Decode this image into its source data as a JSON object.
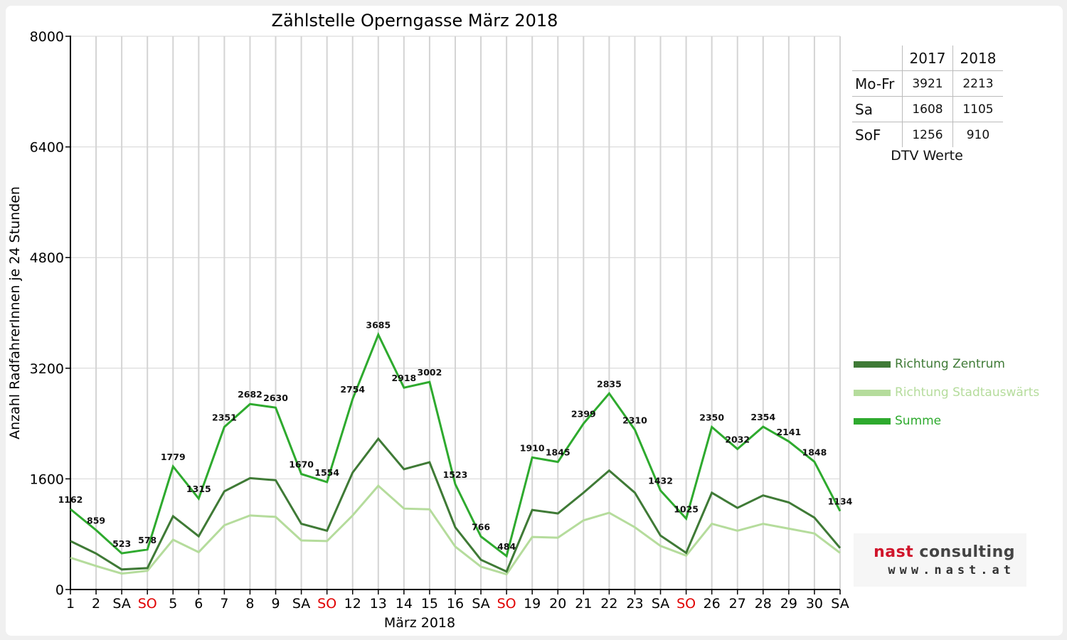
{
  "chart_data": {
    "type": "line",
    "title": "Zählstelle Operngasse März 2018",
    "xlabel": "März 2018",
    "ylabel": "Anzahl RadfahrerInnen je 24 Stunden",
    "ylim": [
      0,
      8000
    ],
    "yticks": [
      0,
      1600,
      3200,
      4800,
      6400,
      8000
    ],
    "grid": true,
    "legend_position": "right",
    "categories": [
      "1",
      "2",
      "SA",
      "SO",
      "5",
      "6",
      "7",
      "8",
      "9",
      "SA",
      "SO",
      "12",
      "13",
      "14",
      "15",
      "16",
      "SA",
      "SO",
      "19",
      "20",
      "21",
      "22",
      "23",
      "SA",
      "SO",
      "26",
      "27",
      "28",
      "29",
      "30",
      "SA"
    ],
    "category_colors": [
      "#000000",
      "#000000",
      "#000000",
      "#e00000",
      "#000000",
      "#000000",
      "#000000",
      "#000000",
      "#000000",
      "#000000",
      "#e00000",
      "#000000",
      "#000000",
      "#000000",
      "#000000",
      "#000000",
      "#000000",
      "#e00000",
      "#000000",
      "#000000",
      "#000000",
      "#000000",
      "#000000",
      "#000000",
      "#e00000",
      "#000000",
      "#000000",
      "#000000",
      "#000000",
      "#000000",
      "#000000"
    ],
    "series": [
      {
        "name": "Richtung Zentrum",
        "color": "#3f7a36",
        "values": [
          700,
          520,
          290,
          310,
          1060,
          770,
          1420,
          1610,
          1580,
          950,
          850,
          1690,
          2180,
          1740,
          1840,
          900,
          430,
          260,
          1150,
          1100,
          1400,
          1720,
          1400,
          780,
          530,
          1400,
          1180,
          1360,
          1260,
          1040,
          600
        ]
      },
      {
        "name": "Richtung Stadtauswärts",
        "color": "#b5dc9c",
        "values": [
          460,
          340,
          230,
          270,
          720,
          540,
          930,
          1070,
          1050,
          710,
          700,
          1070,
          1500,
          1170,
          1160,
          620,
          330,
          220,
          760,
          750,
          1000,
          1110,
          900,
          630,
          490,
          950,
          850,
          950,
          880,
          810,
          530
        ]
      },
      {
        "name": "Summe",
        "color": "#2eaa2e",
        "values": [
          1162,
          859,
          523,
          578,
          1779,
          1315,
          2351,
          2682,
          2630,
          1670,
          1554,
          2754,
          3685,
          2918,
          3002,
          1523,
          766,
          484,
          1910,
          1845,
          2399,
          2835,
          2310,
          1432,
          1025,
          2350,
          2032,
          2354,
          2141,
          1848,
          1134
        ],
        "labels": [
          "1162",
          "859",
          "523",
          "578",
          "1779",
          "1315",
          "2351",
          "2682",
          "2630",
          "1670",
          "1554",
          "2754",
          "3685",
          "2918",
          "3002",
          "1523",
          "766",
          "484",
          "1910",
          "1845",
          "2399",
          "2835",
          "2310",
          "1432",
          "1025",
          "2350",
          "2032",
          "2354",
          "2141",
          "1848",
          "1134"
        ]
      }
    ]
  },
  "dtv_table": {
    "caption": "DTV Werte",
    "headers": [
      "",
      "2017",
      "2018"
    ],
    "rows": [
      {
        "label": "Mo-Fr",
        "v2017": "3921",
        "v2018": "2213"
      },
      {
        "label": "Sa",
        "v2017": "1608",
        "v2018": "1105"
      },
      {
        "label": "SoF",
        "v2017": "1256",
        "v2018": "910"
      }
    ]
  },
  "logo": {
    "word1": "nast",
    "word2": "consulting",
    "url": "www.nast.at"
  }
}
